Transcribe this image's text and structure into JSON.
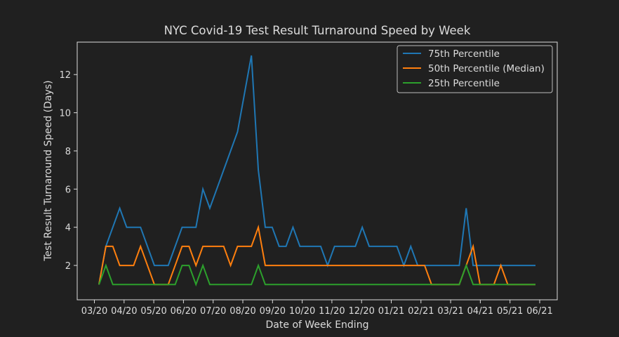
{
  "chart_data": {
    "type": "line",
    "title": "NYC Covid-19 Test Result Turnaround Speed by Week",
    "xlabel": "Date of Week Ending",
    "ylabel": "Test Result Turnaround Speed (Days)",
    "x_tick_labels": [
      "03/20",
      "04/20",
      "05/20",
      "06/20",
      "07/20",
      "08/20",
      "09/20",
      "10/20",
      "11/20",
      "12/20",
      "01/21",
      "02/21",
      "03/21",
      "04/21",
      "05/21",
      "06/21"
    ],
    "y_ticks": [
      2,
      4,
      6,
      8,
      10,
      12
    ],
    "ylim": [
      0.2,
      13.7
    ],
    "grid": false,
    "legend_position": "top-right",
    "series": [
      {
        "name": "75th Percentile",
        "color": "#1f77b4",
        "values": [
          1,
          3,
          4,
          5,
          4,
          4,
          4,
          3,
          2,
          2,
          2,
          3,
          4,
          4,
          4,
          6,
          5,
          6,
          7,
          8,
          9,
          11,
          13,
          7,
          4,
          4,
          3,
          3,
          4,
          3,
          3,
          3,
          3,
          2,
          3,
          3,
          3,
          3,
          4,
          3,
          3,
          3,
          3,
          3,
          2,
          3,
          2,
          2,
          2,
          2,
          2,
          2,
          2,
          5,
          2,
          2,
          2,
          2,
          2,
          2,
          2,
          2,
          2,
          2
        ]
      },
      {
        "name": "50th Percentile (Median)",
        "color": "#ff7f0e",
        "values": [
          1,
          3,
          3,
          2,
          2,
          2,
          3,
          2,
          1,
          1,
          1,
          2,
          3,
          3,
          2,
          3,
          3,
          3,
          3,
          2,
          3,
          3,
          3,
          4,
          2,
          2,
          2,
          2,
          2,
          2,
          2,
          2,
          2,
          2,
          2,
          2,
          2,
          2,
          2,
          2,
          2,
          2,
          2,
          2,
          2,
          2,
          2,
          2,
          1,
          1,
          1,
          1,
          1,
          2,
          3,
          1,
          1,
          1,
          2,
          1,
          1,
          1,
          1,
          1
        ]
      },
      {
        "name": "25th Percentile",
        "color": "#2ca02c",
        "values": [
          1,
          2,
          1,
          1,
          1,
          1,
          1,
          1,
          1,
          1,
          1,
          1,
          2,
          2,
          1,
          2,
          1,
          1,
          1,
          1,
          1,
          1,
          1,
          2,
          1,
          1,
          1,
          1,
          1,
          1,
          1,
          1,
          1,
          1,
          1,
          1,
          1,
          1,
          1,
          1,
          1,
          1,
          1,
          1,
          1,
          1,
          1,
          1,
          1,
          1,
          1,
          1,
          1,
          2,
          1,
          1,
          1,
          1,
          1,
          1,
          1,
          1,
          1,
          1
        ]
      }
    ]
  }
}
